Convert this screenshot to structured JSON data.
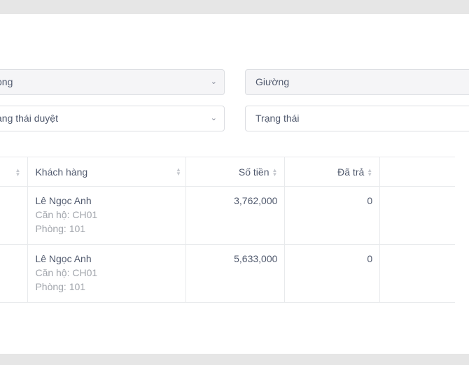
{
  "filters": {
    "room_select": {
      "value": "Phòng",
      "visible": "òng"
    },
    "bed_input": {
      "placeholder": "Giường"
    },
    "approval_select": {
      "value": "Trạng thái duyệt",
      "visible": "ang thái duyệt"
    },
    "status_input": {
      "placeholder": "Trạng thái"
    }
  },
  "table": {
    "columns": [
      "Khách hàng",
      "Số tiền",
      "Đã trả"
    ],
    "rows": [
      {
        "customer": "Lê Ngọc Anh",
        "apartment": "Căn hộ: CH01",
        "room": "Phòng: 101",
        "amount": "3,762,000",
        "paid": "0"
      },
      {
        "customer": "Lê Ngọc Anh",
        "apartment": "Căn hộ: CH01",
        "room": "Phòng: 101",
        "amount": "5,633,000",
        "paid": "0"
      }
    ]
  }
}
